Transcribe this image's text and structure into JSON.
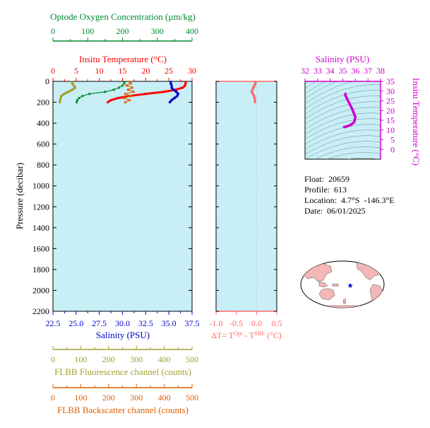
{
  "colors": {
    "oxygen": "#008a2e",
    "temperature": "#ff0000",
    "salinity": "#0000cc",
    "fluorescence": "#a0a030",
    "backscatter": "#e06000",
    "magenta": "#d000d0",
    "dt": "#ff6666",
    "plot_bg": "#c8eef6",
    "land": "#f4b6b6"
  },
  "info": {
    "float_label": "Float:",
    "float_value": "20659",
    "profile_label": "Profile:",
    "profile_value": "613",
    "location_label": "Location:",
    "location_value": "4.7°S  -146.3°E",
    "date_label": "Date:",
    "date_value": "06/01/2025"
  },
  "chart_data": [
    {
      "type": "line",
      "title": "",
      "ylabel": "Pressure (decibar)",
      "ylim": [
        2200,
        0
      ],
      "yticks": [
        0,
        200,
        400,
        600,
        800,
        1000,
        1200,
        1400,
        1600,
        1800,
        2000,
        2200
      ],
      "axes": {
        "oxygen": {
          "label": "Optode Oxygen Concentration (µm/kg)",
          "range": [
            0,
            400
          ],
          "ticks": [
            "0",
            "100",
            "200",
            "300",
            "400"
          ]
        },
        "temperature": {
          "label": "Insitu Temperature (°C)",
          "range": [
            0,
            30
          ],
          "ticks": [
            "0",
            "5",
            "10",
            "15",
            "20",
            "25",
            "30"
          ]
        },
        "salinity": {
          "label": "Salinity (PSU)",
          "range": [
            22.5,
            37.5
          ],
          "ticks": [
            "22.5",
            "25.0",
            "27.5",
            "30.0",
            "32.5",
            "35.0",
            "37.5"
          ]
        },
        "fluorescence": {
          "label": "FLBB Fluorescence channel (counts)",
          "range": [
            0,
            500
          ],
          "ticks": [
            "0",
            "100",
            "200",
            "300",
            "400",
            "500"
          ]
        },
        "backscatter": {
          "label": "FLBB Backscatter channel (counts)",
          "range": [
            0,
            500
          ],
          "ticks": [
            "0",
            "100",
            "200",
            "300",
            "400",
            "500"
          ]
        }
      },
      "series": [
        {
          "axis": "temperature",
          "p": [
            5,
            20,
            40,
            60,
            80,
            100,
            120,
            140,
            160,
            180,
            200
          ],
          "v": [
            28.6,
            28.6,
            28.5,
            28.0,
            26.5,
            24.0,
            20.0,
            16.5,
            14.0,
            12.5,
            11.8
          ]
        },
        {
          "axis": "salinity",
          "p": [
            5,
            20,
            40,
            60,
            80,
            100,
            120,
            140,
            160,
            180,
            200
          ],
          "v": [
            35.2,
            35.2,
            35.3,
            35.3,
            35.5,
            35.8,
            36.0,
            35.9,
            35.6,
            35.3,
            35.1
          ]
        },
        {
          "axis": "oxygen",
          "p": [
            5,
            20,
            40,
            60,
            80,
            100,
            120,
            140,
            160,
            180,
            200
          ],
          "v": [
            205,
            205,
            200,
            190,
            175,
            150,
            105,
            85,
            75,
            70,
            68
          ]
        },
        {
          "axis": "fluorescence",
          "p": [
            5,
            20,
            40,
            60,
            80,
            100,
            120,
            140,
            160,
            180,
            200
          ],
          "v": [
            68,
            70,
            75,
            80,
            70,
            55,
            40,
            30,
            28,
            26,
            25
          ]
        },
        {
          "axis": "backscatter",
          "p": [
            5,
            20,
            40,
            60,
            80,
            100,
            120,
            140,
            160,
            180,
            200
          ],
          "v": [
            275,
            280,
            265,
            285,
            270,
            290,
            260,
            280,
            255,
            275,
            260
          ]
        }
      ]
    },
    {
      "type": "line",
      "title": "",
      "xlabel_parts": {
        "prefix": "ΔT= T",
        "sup1": "Opt",
        "mid": " - T",
        "sup2": "SBE",
        "suffix": " (°C)"
      },
      "xlim": [
        -1.0,
        0.5
      ],
      "xticks": [
        "-1.0",
        "-0.5",
        "0.0",
        "0.5"
      ],
      "ylim": [
        2200,
        0
      ],
      "series": [
        {
          "p": [
            5,
            20,
            40,
            60,
            80,
            100,
            120,
            140,
            160,
            180,
            200
          ],
          "v": [
            -0.02,
            -0.03,
            -0.05,
            -0.08,
            -0.1,
            -0.12,
            -0.09,
            -0.06,
            -0.05,
            -0.04,
            -0.04
          ]
        }
      ]
    },
    {
      "type": "line",
      "title": "",
      "xlabel": "Salinity (PSU)",
      "ylabel": "Insitu Temperature (°C)",
      "xlim": [
        32,
        38
      ],
      "ylim": [
        -5,
        35
      ],
      "xticks": [
        "32",
        "33",
        "34",
        "35",
        "36",
        "37",
        "38"
      ],
      "yticks": [
        "0",
        "5",
        "10",
        "15",
        "20",
        "25",
        "30",
        "35"
      ],
      "series": [
        {
          "s": [
            35.2,
            35.2,
            35.3,
            35.5,
            35.8,
            36.0,
            35.9,
            35.6,
            35.3,
            35.1
          ],
          "t": [
            28.6,
            28.0,
            26.5,
            24.0,
            20.0,
            16.5,
            14.0,
            12.5,
            11.8,
            11.5
          ]
        }
      ]
    },
    {
      "type": "map",
      "title": "",
      "marker": {
        "lat": -4.7,
        "lon": -146.3
      }
    }
  ]
}
